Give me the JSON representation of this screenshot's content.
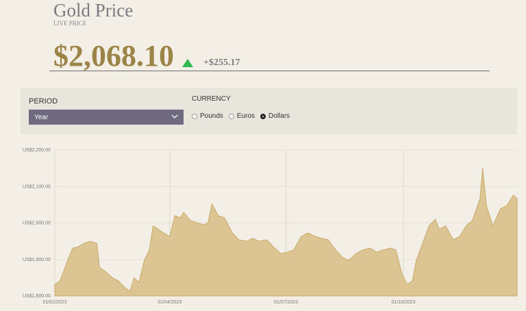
{
  "header": {
    "title": "Gold Price",
    "subtitle": "LIVE PRICE",
    "price": "$2,068.10",
    "change": "+$255.17"
  },
  "controls": {
    "period_label": "PERIOD",
    "period_value": "Year",
    "currency_label": "CURRENCY",
    "currency_options": [
      "Pounds",
      "Euros",
      "Dollars"
    ],
    "currency_selected": 2
  },
  "chart_data": {
    "type": "area",
    "color": "#dcc593",
    "line_color": "#c8ab6c",
    "grid": true,
    "x": [
      "2023-01-01",
      "2023-01-05",
      "2023-01-08",
      "2023-01-11",
      "2023-01-15",
      "2023-01-19",
      "2023-01-24",
      "2023-01-29",
      "2023-02-03",
      "2023-02-05",
      "2023-02-09",
      "2023-02-15",
      "2023-02-20",
      "2023-02-25",
      "2023-03-01",
      "2023-03-04",
      "2023-03-08",
      "2023-03-12",
      "2023-03-16",
      "2023-03-19",
      "2023-03-23",
      "2023-03-27",
      "2023-04-01",
      "2023-04-05",
      "2023-04-09",
      "2023-04-12",
      "2023-04-17",
      "2023-04-22",
      "2023-04-28",
      "2023-05-01",
      "2023-05-04",
      "2023-05-09",
      "2023-05-14",
      "2023-05-20",
      "2023-05-25",
      "2023-05-31",
      "2023-06-05",
      "2023-06-10",
      "2023-06-16",
      "2023-06-21",
      "2023-06-27",
      "2023-07-02",
      "2023-07-07",
      "2023-07-13",
      "2023-07-18",
      "2023-07-24",
      "2023-07-29",
      "2023-08-03",
      "2023-08-09",
      "2023-08-14",
      "2023-08-19",
      "2023-08-25",
      "2023-08-30",
      "2023-09-05",
      "2023-09-10",
      "2023-09-15",
      "2023-09-21",
      "2023-09-25",
      "2023-09-30",
      "2023-10-04",
      "2023-10-08",
      "2023-10-11",
      "2023-10-16",
      "2023-10-21",
      "2023-10-26",
      "2023-10-29",
      "2023-11-03",
      "2023-11-09",
      "2023-11-14",
      "2023-11-19",
      "2023-11-24",
      "2023-11-30",
      "2023-12-02",
      "2023-12-05",
      "2023-12-10",
      "2023-12-16",
      "2023-12-21",
      "2023-12-26",
      "2023-12-29"
    ],
    "values": [
      1832,
      1841,
      1869,
      1897,
      1931,
      1934,
      1944,
      1950,
      1944,
      1878,
      1869,
      1850,
      1841,
      1822,
      1813,
      1850,
      1837,
      1897,
      1926,
      1992,
      1983,
      1973,
      1963,
      2020,
      2014,
      2029,
      2007,
      2001,
      1995,
      2001,
      2052,
      2020,
      2014,
      1973,
      1954,
      1950,
      1958,
      1950,
      1954,
      1935,
      1916,
      1920,
      1926,
      1963,
      1973,
      1963,
      1958,
      1954,
      1926,
      1907,
      1897,
      1916,
      1926,
      1931,
      1920,
      1926,
      1931,
      1926,
      1859,
      1832,
      1841,
      1897,
      1944,
      1992,
      2010,
      1983,
      1992,
      1954,
      1963,
      1992,
      2007,
      2067,
      2151,
      2048,
      1992,
      2039,
      2048,
      2076,
      2067
    ],
    "xlim": [
      "2023-01-01",
      "2023-12-29"
    ],
    "xticks": [
      {
        "value": "2023-01-01",
        "label": "01/01/2023"
      },
      {
        "value": "2023-04-01",
        "label": "01/04/2023"
      },
      {
        "value": "2023-07-01",
        "label": "01/07/2023"
      },
      {
        "value": "2023-10-01",
        "label": "01/10/2023"
      }
    ],
    "ylim": [
      1800,
      2200
    ],
    "yticks": [
      {
        "value": 1800,
        "label": "US$1,800.00"
      },
      {
        "value": 1900,
        "label": "US$1,900.00"
      },
      {
        "value": 2000,
        "label": "US$2,000.00"
      },
      {
        "value": 2100,
        "label": "US$2,100.00"
      },
      {
        "value": 2200,
        "label": "US$2,200.00"
      }
    ]
  }
}
